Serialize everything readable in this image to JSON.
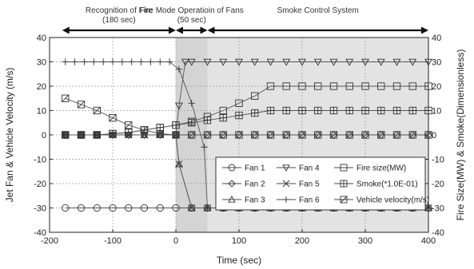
{
  "chart_data": {
    "type": "line",
    "xlabel": "Time (sec)",
    "ylabel": "Jet Fan & Vehicle Velocity (m/s)",
    "ylabel_right": "Fire Size(MW) & Smoke(Dimensionless)",
    "xlim": [
      -200,
      400
    ],
    "ylim": [
      -40,
      40
    ],
    "x_ticks": [
      -200,
      -100,
      0,
      100,
      200,
      300,
      400
    ],
    "y_ticks": [
      -40,
      -30,
      -20,
      -10,
      0,
      10,
      20,
      30,
      40
    ],
    "grid": true,
    "legend_position": "lower-right",
    "phases": [
      {
        "name": "recognition",
        "label_lines": [
          "Recognition of Fire",
          "(180 sec)"
        ],
        "x_start": -180,
        "x_end": 0
      },
      {
        "name": "fire-mode",
        "label_lines": [
          "Fire Mode Operatioin of Fans",
          "(50 sec)"
        ],
        "x_start": 0,
        "x_end": 50
      },
      {
        "name": "smoke-control",
        "label_lines": [
          "Smoke Control System"
        ],
        "x_start": 50,
        "x_end": 400
      }
    ],
    "shaded_regions": [
      {
        "x_start": 0,
        "x_end": 50,
        "color": "#d4d4d4"
      },
      {
        "x_start": 50,
        "x_end": 400,
        "color": "#e3e3e3"
      }
    ],
    "series": [
      {
        "name": "Fan 1",
        "marker": "circle",
        "x": [
          -175,
          -150,
          -125,
          -100,
          -75,
          -50,
          -25,
          0,
          25,
          50,
          75,
          100,
          125,
          150,
          175,
          200,
          225,
          250,
          275,
          300,
          325,
          350,
          375,
          400
        ],
        "y": [
          -30,
          -30,
          -30,
          -30,
          -30,
          -30,
          -30,
          -30,
          -30,
          -30,
          -30,
          -30,
          -30,
          -30,
          -30,
          -30,
          -30,
          -30,
          -30,
          -30,
          -30,
          -30,
          -30,
          -30
        ]
      },
      {
        "name": "Fan 2",
        "marker": "diamond",
        "x": [
          -175,
          -150,
          -125,
          -100,
          -75,
          -50,
          -25,
          0,
          25,
          50,
          75,
          100,
          125,
          150,
          175,
          200,
          225,
          250,
          275,
          300,
          325,
          350,
          375,
          400
        ],
        "y": [
          0,
          0,
          0,
          0,
          0,
          0,
          0,
          0,
          0,
          0,
          0,
          0,
          0,
          0,
          0,
          0,
          0,
          0,
          0,
          0,
          0,
          0,
          0,
          0
        ]
      },
      {
        "name": "Fan 3",
        "marker": "triangle-up",
        "x": [
          -175,
          -150,
          -125,
          -100,
          -75,
          -50,
          -25,
          0,
          5,
          25,
          50,
          75,
          100,
          125,
          150,
          175,
          200,
          225,
          250,
          275,
          300,
          325,
          350,
          375,
          400
        ],
        "y": [
          0,
          0,
          0,
          0,
          0,
          0,
          0,
          0,
          -12,
          -30,
          -30,
          -30,
          -30,
          -30,
          -30,
          -30,
          -30,
          -30,
          -30,
          -30,
          -30,
          -30,
          -30,
          -30,
          -30
        ]
      },
      {
        "name": "Fan 4",
        "marker": "triangle-down",
        "x": [
          -175,
          -150,
          -125,
          -100,
          -75,
          -50,
          -25,
          0,
          5,
          15,
          25,
          50,
          75,
          100,
          125,
          150,
          175,
          200,
          225,
          250,
          275,
          300,
          325,
          350,
          375,
          400
        ],
        "y": [
          0,
          0,
          0,
          0,
          0,
          0,
          0,
          0,
          12,
          30,
          30,
          30,
          30,
          30,
          30,
          30,
          30,
          30,
          30,
          30,
          30,
          30,
          30,
          30,
          30,
          30
        ]
      },
      {
        "name": "Fan 5",
        "marker": "x",
        "x": [
          -175,
          -150,
          -125,
          -100,
          -75,
          -50,
          -25,
          0,
          5,
          25,
          50,
          75,
          100,
          125,
          150,
          175,
          200,
          225,
          250,
          275,
          300,
          325,
          350,
          375,
          400
        ],
        "y": [
          0,
          0,
          0,
          0,
          0,
          0,
          0,
          0,
          -12,
          -30,
          -30,
          -30,
          -30,
          -30,
          -30,
          -30,
          -30,
          -30,
          -30,
          -30,
          -30,
          -30,
          -30,
          -30,
          -30
        ]
      },
      {
        "name": "Fan 6",
        "marker": "plus",
        "x": [
          -175,
          -160,
          -145,
          -130,
          -115,
          -100,
          -85,
          -70,
          -55,
          -40,
          -25,
          -10,
          5,
          25,
          45,
          50,
          75,
          100,
          125,
          150,
          175,
          200,
          225,
          250,
          275,
          300,
          325,
          350,
          375,
          400
        ],
        "y": [
          30,
          30,
          30,
          30,
          30,
          30,
          30,
          30,
          30,
          30,
          30,
          30,
          27,
          13,
          -5,
          -30,
          -30,
          -30,
          -30,
          -30,
          -30,
          -30,
          -30,
          -30,
          -30,
          -30,
          -30,
          -30,
          -30,
          -30
        ]
      },
      {
        "name": "Fire size(MW)",
        "marker": "square",
        "x": [
          -175,
          -150,
          -125,
          -100,
          -75,
          -50,
          -25,
          0,
          25,
          50,
          75,
          100,
          125,
          150,
          175,
          200,
          225,
          250,
          275,
          300,
          325,
          350,
          375,
          400
        ],
        "y": [
          0,
          0,
          0,
          0.5,
          1,
          2,
          3,
          4,
          5.5,
          7.5,
          10,
          13,
          16,
          20,
          20,
          20,
          20,
          20,
          20,
          20,
          20,
          20,
          20,
          20
        ]
      },
      {
        "name": "Smoke(*1.0E-01)",
        "marker": "square-cross",
        "x": [
          -175,
          -150,
          -125,
          -100,
          -75,
          -50,
          -25,
          0,
          25,
          50,
          75,
          100,
          125,
          150,
          175,
          200,
          225,
          250,
          275,
          300,
          325,
          350,
          375,
          400
        ],
        "y": [
          0,
          0,
          0,
          0.5,
          1,
          2,
          3,
          4,
          5,
          6,
          7,
          8,
          9,
          10,
          10,
          10,
          10,
          10,
          10,
          10,
          10,
          10,
          10,
          10
        ]
      },
      {
        "name": "Vehicle velocity(m/s)",
        "marker": "square-slash",
        "x": [
          -175,
          -150,
          -125,
          -100,
          -75,
          -50,
          -25,
          0,
          25,
          50,
          75,
          100,
          125,
          150,
          175,
          200,
          225,
          250,
          275,
          300,
          325,
          350,
          375,
          400
        ],
        "y": [
          15,
          12.5,
          10,
          7,
          4,
          2,
          0.5,
          0,
          0,
          0,
          0,
          0,
          0,
          0,
          0,
          0,
          0,
          0,
          0,
          0,
          0,
          0,
          0,
          0
        ]
      }
    ]
  },
  "legend_columns": [
    [
      0,
      1,
      2
    ],
    [
      3,
      4,
      5
    ],
    [
      6,
      7,
      8
    ]
  ]
}
